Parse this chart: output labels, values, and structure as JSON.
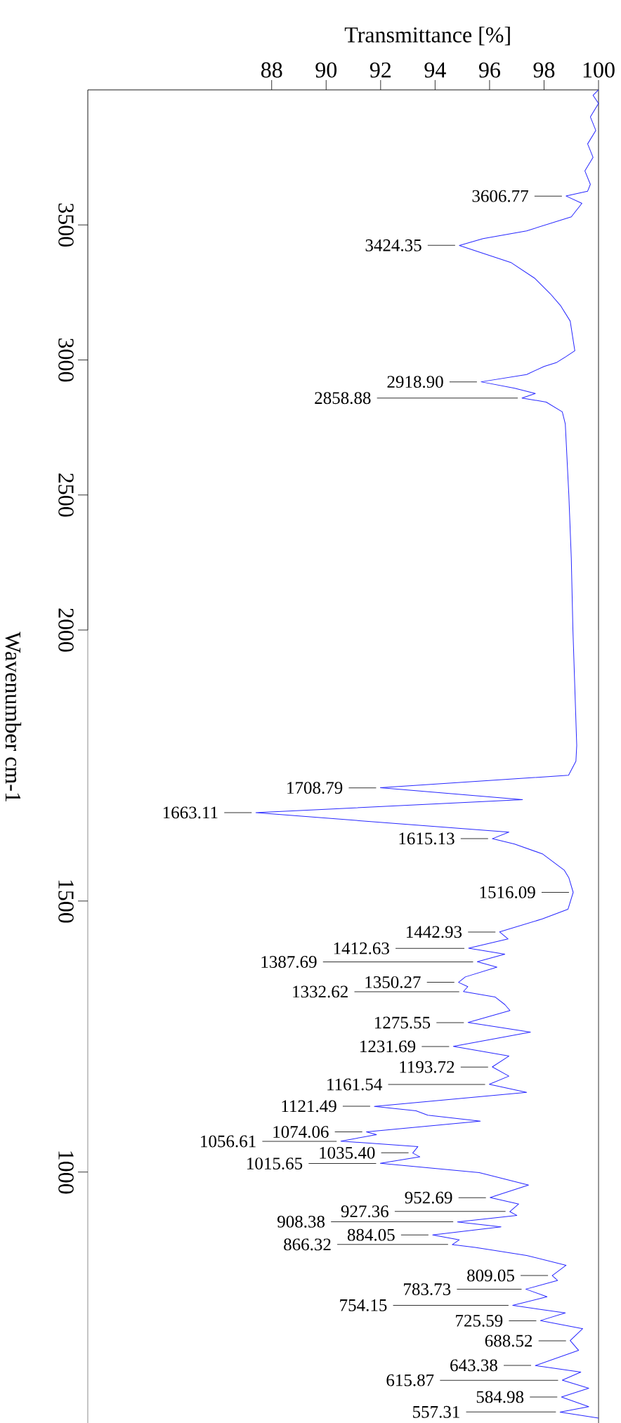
{
  "chart_data": [
    {
      "type": "line",
      "xlabel": "Transmittance [%]",
      "xlim": [
        81.25,
        100
      ],
      "xticks": [
        88,
        90,
        92,
        94,
        96,
        98,
        100
      ],
      "ylim": [
        2000,
        4000
      ],
      "yticks": [
        2500,
        3000,
        3500
      ],
      "series": [
        {
          "color": "#2828ff",
          "x": [
            100,
            99.8,
            100,
            99.7,
            99.9,
            99.6,
            99.8,
            99.5,
            99.7,
            99.6,
            98.81,
            99.39,
            99.0,
            97.36,
            95.76,
            94.89,
            96.78,
            97.65,
            98.23,
            98.6,
            98.96,
            99.13,
            98.8,
            98.45,
            98.0,
            97.36,
            95.69,
            96.92,
            97.68,
            97.19,
            98.08,
            98.67,
            98.78,
            98.91,
            99.0,
            99.06
          ],
          "values": [
            4000,
            3980,
            3950,
            3900,
            3850,
            3800,
            3750,
            3700,
            3650,
            3625,
            3607,
            3580,
            3530,
            3478,
            3449,
            3424,
            3361,
            3303,
            3245,
            3202,
            3144,
            3034,
            3012,
            2990,
            2976,
            2946,
            2919,
            2895,
            2876,
            2859,
            2844,
            2808,
            2763,
            2500,
            2266,
            2000
          ]
        }
      ],
      "annotations": [
        {
          "text": "3606.77",
          "x": 98.81,
          "y": 3606.77
        },
        {
          "text": "3424.35",
          "x": 94.89,
          "y": 3424.35
        },
        {
          "text": "2918.90",
          "x": 95.69,
          "y": 2918.9
        },
        {
          "text": "2858.88",
          "x": 97.19,
          "y": 2858.88
        }
      ]
    },
    {
      "type": "line",
      "ylabel": "Wavenumber cm-1",
      "xlim": [
        81.25,
        100
      ],
      "ylim": [
        537,
        2000
      ],
      "yticks": [
        1000,
        1500,
        2000
      ],
      "tick_labels": "y",
      "series": [
        {
          "color": "#2828ff",
          "x": [
            99.06,
            99.2,
            99.17,
            98.9,
            91.99,
            97.21,
            87.42,
            96.71,
            96.1,
            96.92,
            97.94,
            98.74,
            98.91,
            99.07,
            98.88,
            97.94,
            96.37,
            96.68,
            95.23,
            96.56,
            95.55,
            96.27,
            95.11,
            94.86,
            95.2,
            95.04,
            96.2,
            96.56,
            96.75,
            95.21,
            97.5,
            94.67,
            96.71,
            96.1,
            96.71,
            95.99,
            97.36,
            91.77,
            93.3,
            93.73,
            95.66,
            91.48,
            91.85,
            90.54,
            93.37,
            93.18,
            93.44,
            91.99,
            95.62,
            97.43,
            96.02,
            97.07,
            96.74,
            97.0,
            94.82,
            96.42,
            93.91,
            94.89,
            94.63,
            95.47,
            97.36,
            98.81,
            98.3,
            98.5,
            97.33,
            98.11,
            96.85,
            98.78,
            97.87,
            99.42,
            98.96,
            99.27,
            97.68,
            99.35,
            98.67,
            99.64,
            98.64,
            99.64,
            98.59,
            100
          ],
          "values": [
            2000,
            1787,
            1758,
            1732,
            1709,
            1687,
            1663,
            1627,
            1615,
            1605,
            1587,
            1557,
            1543,
            1516,
            1485,
            1467,
            1443,
            1430,
            1413,
            1402,
            1388,
            1378,
            1360,
            1350,
            1342,
            1333,
            1323,
            1309,
            1298,
            1276,
            1258,
            1232,
            1214,
            1194,
            1177,
            1162,
            1147,
            1121,
            1113,
            1105,
            1094,
            1074,
            1069,
            1057,
            1047,
            1035,
            1028,
            1016,
            999,
            976,
            953,
            941,
            927,
            920,
            908,
            899,
            884,
            875,
            866,
            861,
            846,
            828,
            809,
            800,
            784,
            770,
            754,
            740,
            726,
            711,
            689,
            671,
            643,
            631,
            616,
            601,
            585,
            567,
            557,
            546
          ]
        }
      ],
      "annotations": [
        {
          "text": "1708.79",
          "x": 91.99,
          "y": 1708.79
        },
        {
          "text": "1663.11",
          "x": 87.42,
          "y": 1663.11
        },
        {
          "text": "1615.13",
          "x": 96.1,
          "y": 1615.13
        },
        {
          "text": "1516.09",
          "x": 99.07,
          "y": 1516.09
        },
        {
          "text": "1442.93",
          "x": 96.37,
          "y": 1442.93
        },
        {
          "text": "1412.63",
          "x": 95.23,
          "y": 1412.63
        },
        {
          "text": "1387.69",
          "x": 95.55,
          "y": 1387.69
        },
        {
          "text": "1350.27",
          "x": 94.86,
          "y": 1350.27
        },
        {
          "text": "1332.62",
          "x": 95.04,
          "y": 1332.62
        },
        {
          "text": "1275.55",
          "x": 95.21,
          "y": 1275.55
        },
        {
          "text": "1231.69",
          "x": 94.67,
          "y": 1231.69
        },
        {
          "text": "1193.72",
          "x": 96.1,
          "y": 1193.72
        },
        {
          "text": "1161.54",
          "x": 95.99,
          "y": 1161.54
        },
        {
          "text": "1121.49",
          "x": 91.77,
          "y": 1121.49
        },
        {
          "text": "1074.06",
          "x": 91.48,
          "y": 1074.06
        },
        {
          "text": "1056.61",
          "x": 90.54,
          "y": 1056.61
        },
        {
          "text": "1035.40",
          "x": 93.18,
          "y": 1035.4
        },
        {
          "text": "1015.65",
          "x": 91.99,
          "y": 1015.65
        },
        {
          "text": "952.69",
          "x": 96.02,
          "y": 952.69
        },
        {
          "text": "927.36",
          "x": 96.74,
          "y": 927.36
        },
        {
          "text": "908.38",
          "x": 94.82,
          "y": 908.38
        },
        {
          "text": "884.05",
          "x": 93.91,
          "y": 884.05
        },
        {
          "text": "866.32",
          "x": 94.63,
          "y": 866.32
        },
        {
          "text": "809.05",
          "x": 98.3,
          "y": 809.05
        },
        {
          "text": "783.73",
          "x": 97.33,
          "y": 783.73
        },
        {
          "text": "754.15",
          "x": 96.85,
          "y": 754.15
        },
        {
          "text": "725.59",
          "x": 97.87,
          "y": 725.59
        },
        {
          "text": "688.52",
          "x": 98.96,
          "y": 688.52
        },
        {
          "text": "643.38",
          "x": 97.68,
          "y": 643.38
        },
        {
          "text": "615.87",
          "x": 98.67,
          "y": 615.87
        },
        {
          "text": "584.98",
          "x": 98.64,
          "y": 584.98
        },
        {
          "text": "557.31",
          "x": 98.59,
          "y": 557.31
        }
      ]
    }
  ]
}
